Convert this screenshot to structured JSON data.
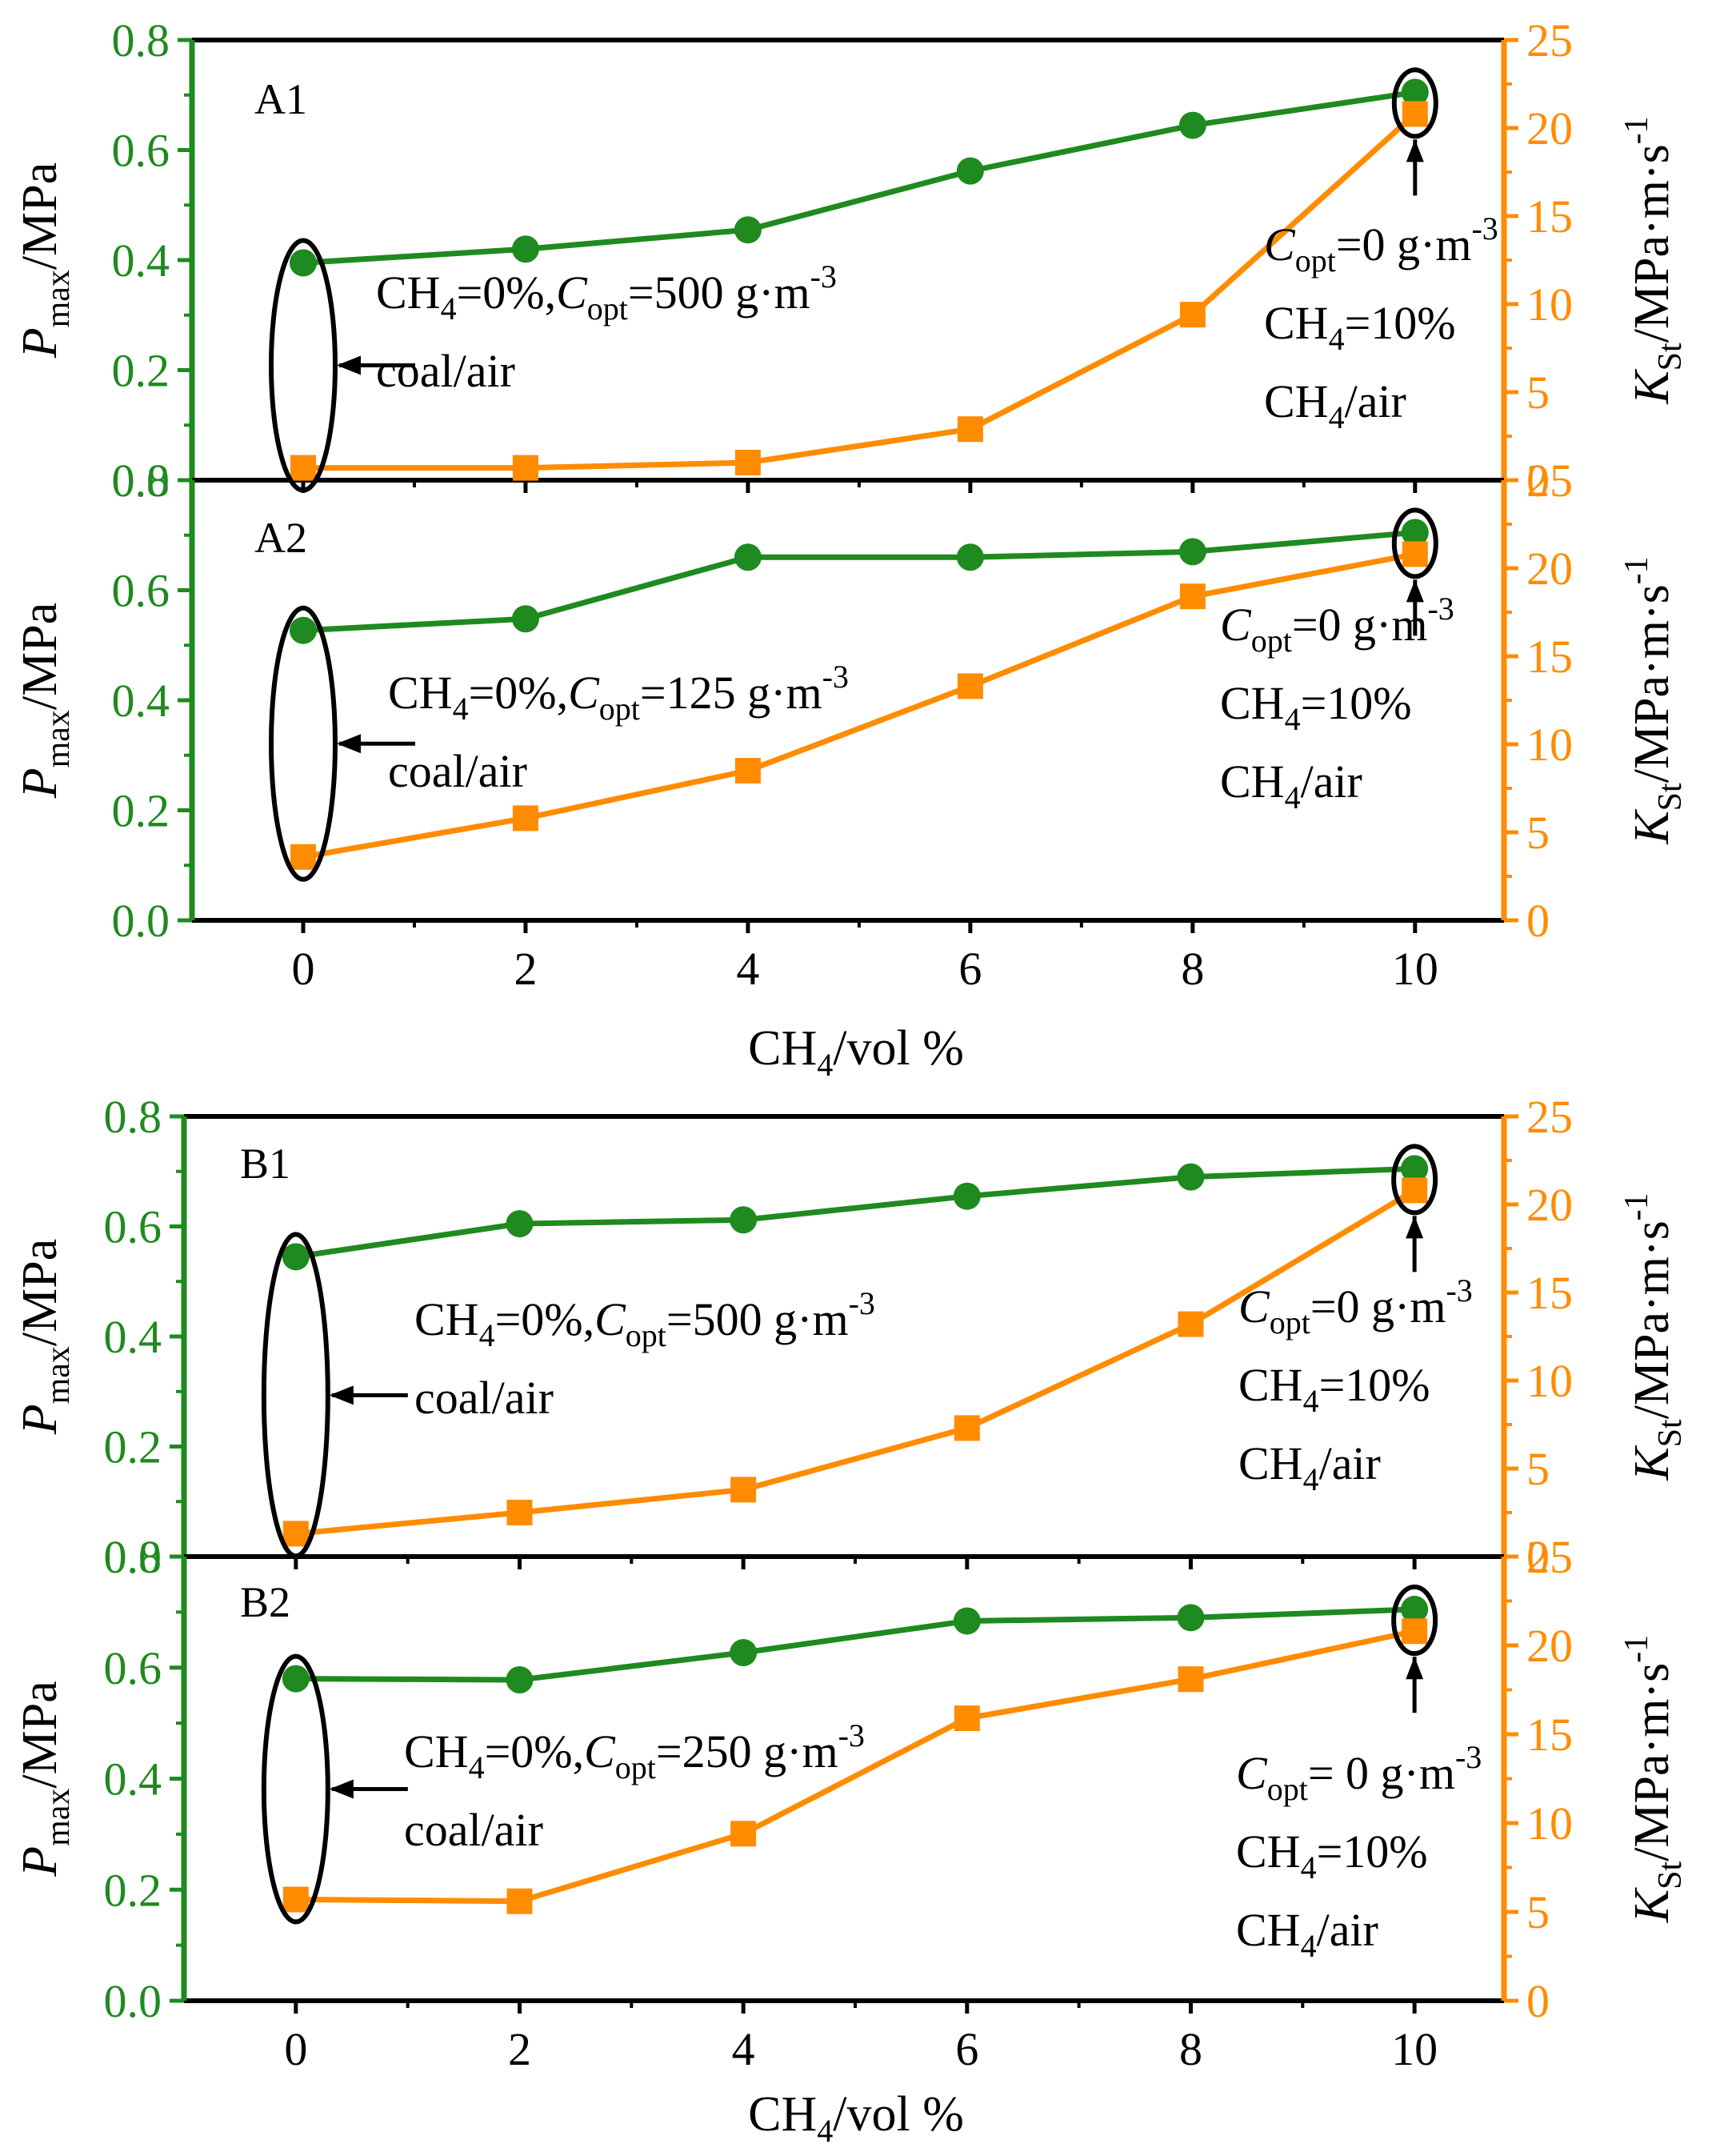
{
  "colors": {
    "pmax": "#1f8a1f",
    "kst": "#ff8c00",
    "frame": "#000000"
  },
  "charts": {
    "A": {
      "xlabel": {
        "main": "CH",
        "sub": "4",
        "rest": "/vol %"
      }
    },
    "B": {
      "xlabel": {
        "main": "CH",
        "sub": "4",
        "rest": "/vol %"
      }
    }
  },
  "chart_data": [
    {
      "type": "line",
      "panel": "A1",
      "x": [
        0,
        2,
        4,
        6,
        8,
        10
      ],
      "xlim": [
        -1,
        10.8
      ],
      "xticks": [
        "0",
        "2",
        "4",
        "6",
        "8",
        "10"
      ],
      "ylabel_left": "P_max/MPa",
      "ylabel_right": "K_St/MPa·m·s^-1",
      "ylim_left": [
        0,
        0.8
      ],
      "ylim_right": [
        0,
        25
      ],
      "yticks_left": [
        "0.0",
        "0.2",
        "0.4",
        "0.6",
        "0.8"
      ],
      "yticks_right": [
        "0",
        "5",
        "10",
        "15",
        "20",
        "25"
      ],
      "series": [
        {
          "name": "Pmax",
          "axis": "left",
          "marker": "circle",
          "values": [
            0.395,
            0.42,
            0.455,
            0.562,
            0.645,
            0.705
          ]
        },
        {
          "name": "KSt",
          "axis": "right",
          "marker": "square",
          "values": [
            0.7,
            0.7,
            1.0,
            2.9,
            9.4,
            20.8
          ]
        }
      ],
      "annotations": {
        "left_lines": [
          "CH4=0%,Copt=500 g·m-3",
          "coal/air"
        ],
        "right_lines": [
          "Copt=0 g·m-3",
          "CH4=10%",
          "CH4/air"
        ]
      }
    },
    {
      "type": "line",
      "panel": "A2",
      "x": [
        0,
        2,
        4,
        6,
        8,
        10
      ],
      "xlim": [
        -1,
        10.8
      ],
      "xticks": [
        "0",
        "2",
        "4",
        "6",
        "8",
        "10"
      ],
      "ylabel_left": "P_max/MPa",
      "ylabel_right": "K_St/MPa·m·s^-1",
      "ylim_left": [
        0,
        0.8
      ],
      "ylim_right": [
        0,
        25
      ],
      "yticks_left": [
        "0.0",
        "0.2",
        "0.4",
        "0.6",
        "0.8"
      ],
      "yticks_right": [
        "0",
        "5",
        "10",
        "15",
        "20",
        "25"
      ],
      "series": [
        {
          "name": "Pmax",
          "axis": "left",
          "marker": "circle",
          "values": [
            0.527,
            0.548,
            0.66,
            0.66,
            0.67,
            0.705
          ]
        },
        {
          "name": "KSt",
          "axis": "right",
          "marker": "square",
          "values": [
            3.6,
            5.8,
            8.5,
            13.3,
            18.4,
            20.8
          ]
        }
      ],
      "annotations": {
        "left_lines": [
          "CH4=0%,Copt=125 g·m-3",
          "coal/air"
        ],
        "right_lines": [
          "Copt=0 g·m-3",
          "CH4=10%",
          "CH4/air"
        ]
      }
    },
    {
      "type": "line",
      "panel": "B1",
      "x": [
        0,
        2,
        4,
        6,
        8,
        10
      ],
      "xlim": [
        -1,
        10.8
      ],
      "xticks": [
        "0",
        "2",
        "4",
        "6",
        "8",
        "10"
      ],
      "ylabel_left": "P_max/MPa",
      "ylabel_right": "K_St/MPa·m·s^-1",
      "ylim_left": [
        0,
        0.8
      ],
      "ylim_right": [
        0,
        25
      ],
      "yticks_left": [
        "0.0",
        "0.2",
        "0.4",
        "0.6",
        "0.8"
      ],
      "yticks_right": [
        "0",
        "5",
        "10",
        "15",
        "20",
        "25"
      ],
      "series": [
        {
          "name": "Pmax",
          "axis": "left",
          "marker": "circle",
          "values": [
            0.545,
            0.605,
            0.612,
            0.655,
            0.69,
            0.705
          ]
        },
        {
          "name": "KSt",
          "axis": "right",
          "marker": "square",
          "values": [
            1.3,
            2.5,
            3.8,
            7.3,
            13.2,
            20.8
          ]
        }
      ],
      "annotations": {
        "left_lines": [
          "CH4=0%,Copt=500 g·m-3",
          "coal/air"
        ],
        "right_lines": [
          "Copt=0 g·m-3",
          "CH4=10%",
          "CH4/air"
        ]
      }
    },
    {
      "type": "line",
      "panel": "B2",
      "x": [
        0,
        2,
        4,
        6,
        8,
        10
      ],
      "xlim": [
        -1,
        10.8
      ],
      "xticks": [
        "0",
        "2",
        "4",
        "6",
        "8",
        "10"
      ],
      "ylabel_left": "P_max/MPa",
      "ylabel_right": "K_St/MPa·m·s^-1",
      "ylim_left": [
        0,
        0.8
      ],
      "ylim_right": [
        0,
        25
      ],
      "yticks_left": [
        "0.0",
        "0.2",
        "0.4",
        "0.6",
        "0.8"
      ],
      "yticks_right": [
        "0",
        "5",
        "10",
        "15",
        "20",
        "25"
      ],
      "series": [
        {
          "name": "Pmax",
          "axis": "left",
          "marker": "circle",
          "values": [
            0.58,
            0.578,
            0.627,
            0.684,
            0.69,
            0.705
          ]
        },
        {
          "name": "KSt",
          "axis": "right",
          "marker": "square",
          "values": [
            5.7,
            5.6,
            9.4,
            15.9,
            18.1,
            20.8
          ]
        }
      ],
      "annotations": {
        "left_lines": [
          "CH4=0%,Copt=250 g·m-3",
          "coal/air"
        ],
        "right_lines": [
          "Copt= 0 g·m-3",
          "CH4=10%",
          "CH4/air"
        ]
      }
    }
  ]
}
